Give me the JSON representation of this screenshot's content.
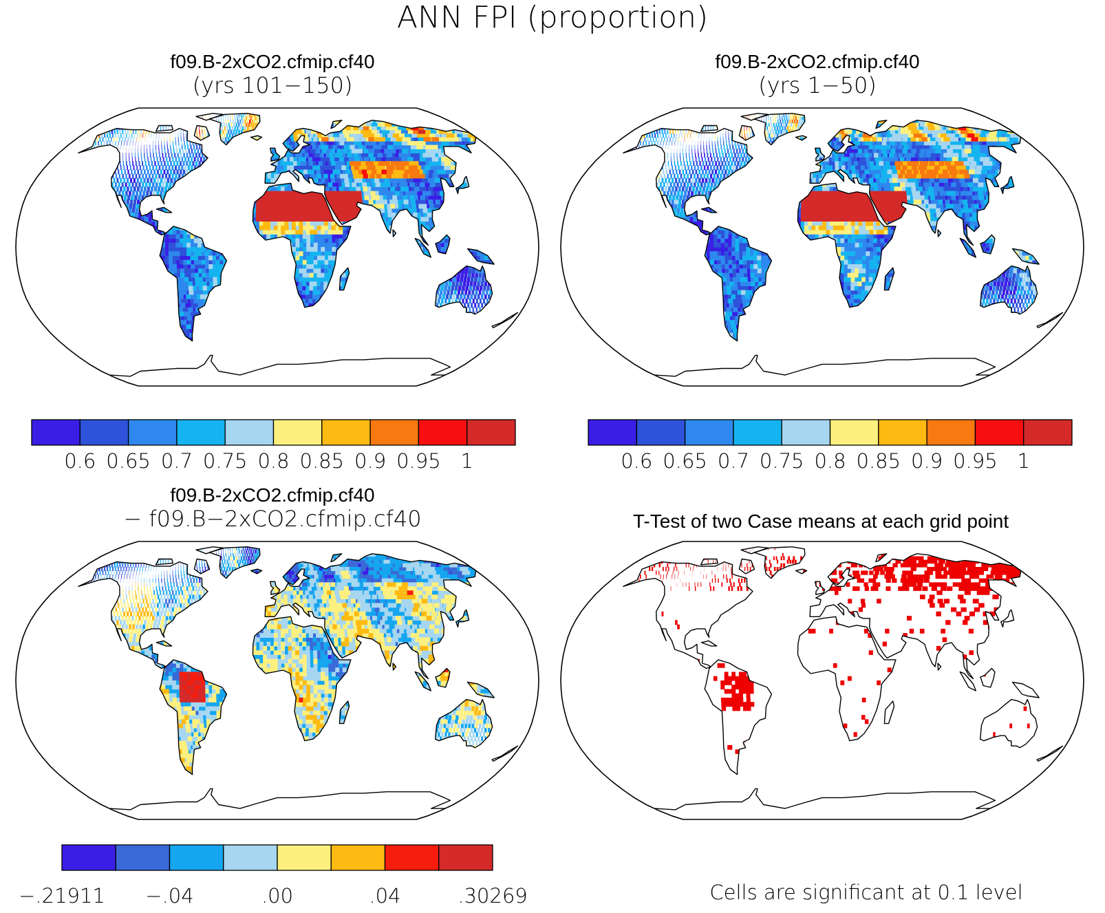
{
  "figure_title": "ANN FPI (proportion)",
  "panels": [
    {
      "id": "case1",
      "title": "f09.B-2xCO2.cfmip.cf40",
      "subtitle": "(yrs 101−150)",
      "map_type": "filled-contour",
      "colorbar": {
        "colors": [
          "#3a1ee6",
          "#2e52d9",
          "#2e88ee",
          "#15b4f0",
          "#a6d6f0",
          "#fdf07e",
          "#fdba12",
          "#f77910",
          "#f70e0e",
          "#d42a2a"
        ],
        "tick_labels": [
          "0.6",
          "0.65",
          "0.7",
          "0.75",
          "0.8",
          "0.85",
          "0.9",
          "0.95",
          "1"
        ]
      }
    },
    {
      "id": "case2",
      "title": "f09.B-2xCO2.cfmip.cf40",
      "subtitle": "(yrs 1−50)",
      "map_type": "filled-contour",
      "colorbar": {
        "colors": [
          "#3a1ee6",
          "#2e52d9",
          "#2e88ee",
          "#15b4f0",
          "#a6d6f0",
          "#fdf07e",
          "#fdba12",
          "#f77910",
          "#f70e0e",
          "#d42a2a"
        ],
        "tick_labels": [
          "0.6",
          "0.65",
          "0.7",
          "0.75",
          "0.8",
          "0.85",
          "0.9",
          "0.95",
          "1"
        ]
      }
    },
    {
      "id": "difference",
      "title": "f09.B-2xCO2.cfmip.cf40",
      "subtitle": "− f09.B−2xCO2.cfmip.cf40",
      "map_type": "filled-contour",
      "colorbar": {
        "colors": [
          "#3a1ee6",
          "#3a6ad8",
          "#15a6ef",
          "#a6d6f0",
          "#fdf07e",
          "#fdba12",
          "#f71d0e",
          "#d42a2a"
        ],
        "tick_labels": [
          "−.21911",
          "−.04",
          ".00",
          ".04",
          ".30269"
        ]
      }
    },
    {
      "id": "ttest",
      "title": "T-Test of two Case means at each grid point",
      "map_type": "significance",
      "significance_color": "#ee0000",
      "footnote": "Cells are significant at 0.1 level"
    }
  ]
}
